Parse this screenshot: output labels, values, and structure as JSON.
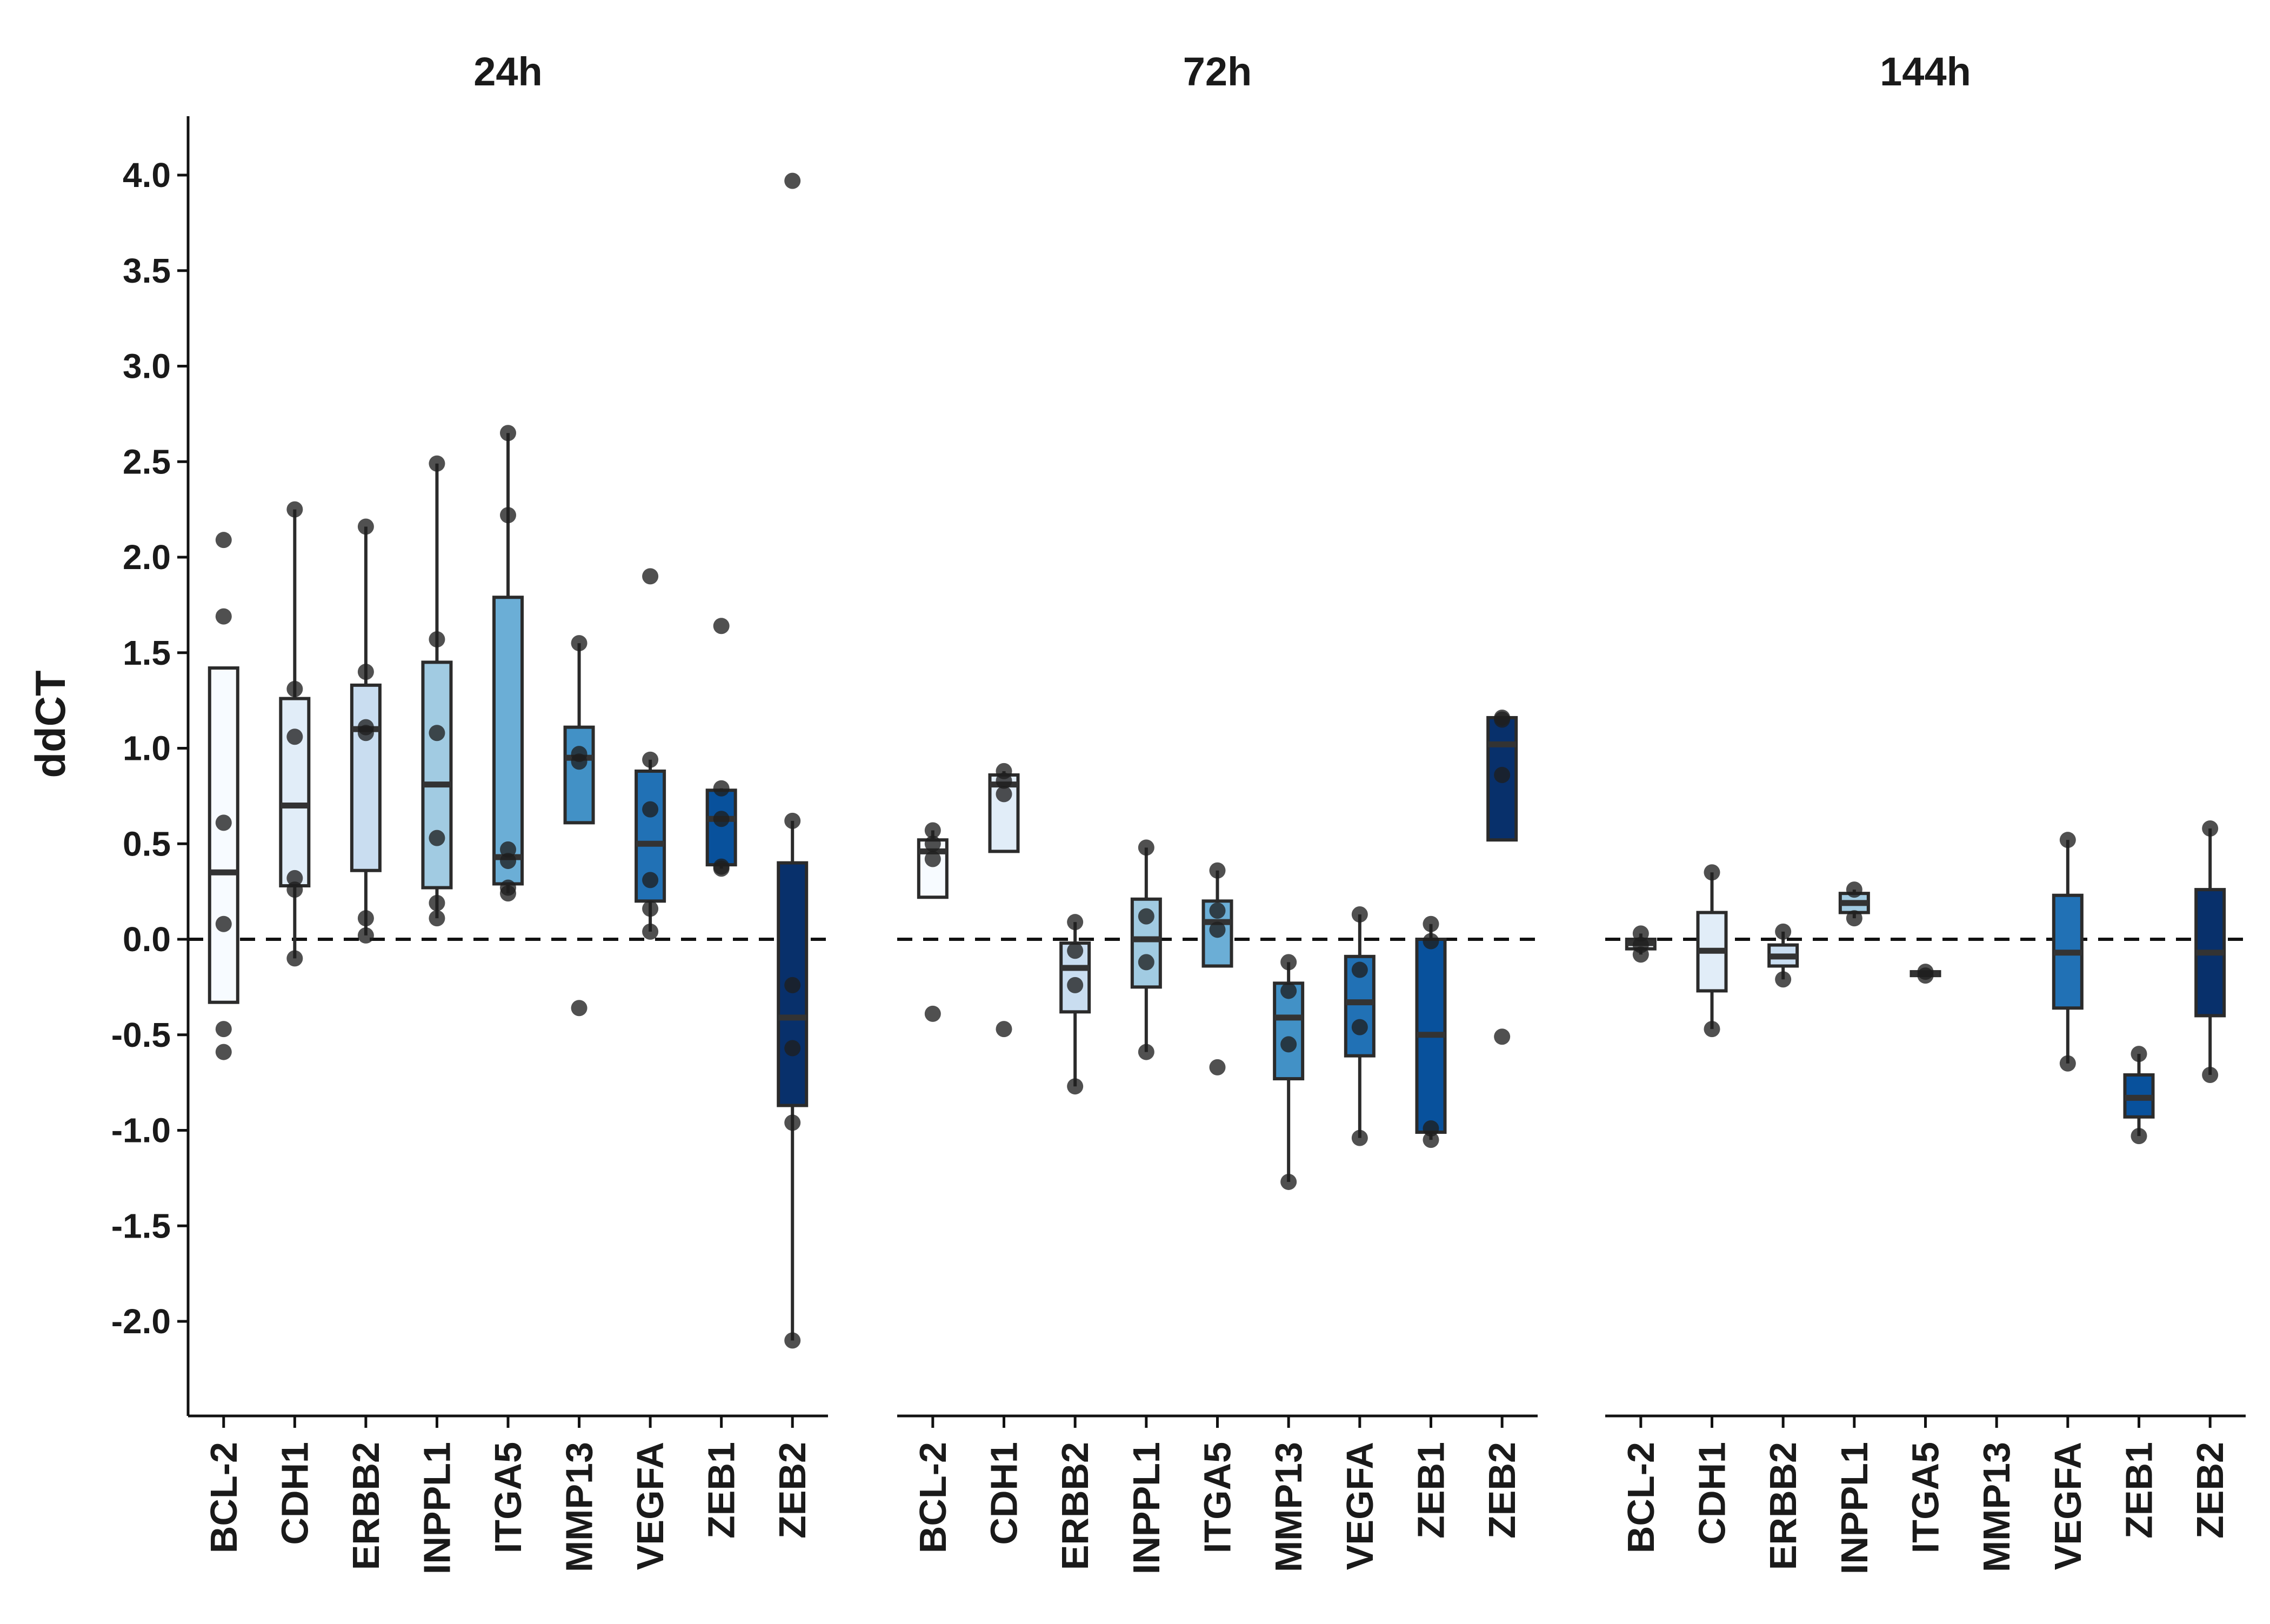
{
  "chart_data": {
    "type": "box",
    "ylabel": "ddCT",
    "ylim": [
      -2.5,
      4.3
    ],
    "yticks": [
      -2.0,
      -1.5,
      -1.0,
      -0.5,
      0.0,
      0.5,
      1.0,
      1.5,
      2.0,
      2.5,
      3.0,
      3.5,
      4.0
    ],
    "ytick_labels": [
      "-2.0",
      "-1.5",
      "-1.0",
      "-0.5",
      "0.0",
      "0.5",
      "1.0",
      "1.5",
      "2.0",
      "2.5",
      "3.0",
      "3.5",
      "4.0"
    ],
    "reference_line": {
      "y": 0.0,
      "style": "dashed"
    },
    "grid": false,
    "legend": "none",
    "categories": [
      "BCL-2",
      "CDH1",
      "ERBB2",
      "INPPL1",
      "ITGA5",
      "MMP13",
      "VEGFA",
      "ZEB1",
      "ZEB2"
    ],
    "category_colors": [
      "#f7fbff",
      "#e1edf8",
      "#c9ddf0",
      "#a1cbe2",
      "#6baed6",
      "#4291c6",
      "#2171b5",
      "#08519c",
      "#08306b"
    ],
    "panels": [
      {
        "title": "24h",
        "boxes": [
          {
            "category": "BCL-2",
            "q1": -0.33,
            "median": 0.35,
            "q3": 1.42,
            "lower": -0.33,
            "upper": 1.42,
            "points": [
              2.09,
              1.69,
              0.61,
              0.08,
              -0.47,
              -0.59
            ]
          },
          {
            "category": "CDH1",
            "q1": 0.28,
            "median": 0.7,
            "q3": 1.26,
            "lower": -0.1,
            "upper": 2.25,
            "points": [
              2.25,
              1.31,
              1.06,
              0.32,
              0.26,
              -0.1
            ]
          },
          {
            "category": "ERBB2",
            "q1": 0.36,
            "median": 1.1,
            "q3": 1.33,
            "lower": 0.02,
            "upper": 2.16,
            "points": [
              2.16,
              1.4,
              1.11,
              1.08,
              0.11,
              0.02
            ]
          },
          {
            "category": "INPPL1",
            "q1": 0.27,
            "median": 0.81,
            "q3": 1.45,
            "lower": 0.11,
            "upper": 2.49,
            "points": [
              2.49,
              1.57,
              1.08,
              0.53,
              0.19,
              0.11
            ]
          },
          {
            "category": "ITGA5",
            "q1": 0.29,
            "median": 0.43,
            "q3": 1.79,
            "lower": 0.24,
            "upper": 2.65,
            "points": [
              2.65,
              2.22,
              0.47,
              0.41,
              0.27,
              0.24
            ]
          },
          {
            "category": "MMP13",
            "q1": 0.61,
            "median": 0.95,
            "q3": 1.11,
            "lower": 0.61,
            "upper": 1.55,
            "points": [
              1.55,
              0.97,
              0.93,
              -0.36
            ]
          },
          {
            "category": "VEGFA",
            "q1": 0.2,
            "median": 0.5,
            "q3": 0.88,
            "lower": 0.04,
            "upper": 0.94,
            "points": [
              1.9,
              0.94,
              0.68,
              0.31,
              0.16,
              0.04
            ]
          },
          {
            "category": "ZEB1",
            "q1": 0.39,
            "median": 0.63,
            "q3": 0.78,
            "lower": 0.37,
            "upper": 0.79,
            "points": [
              1.64,
              0.79,
              0.63,
              0.38,
              0.37
            ]
          },
          {
            "category": "ZEB2",
            "q1": -0.87,
            "median": -0.41,
            "q3": 0.4,
            "lower": -2.1,
            "upper": 0.62,
            "points": [
              3.97,
              0.62,
              -0.24,
              -0.57,
              -0.96,
              -2.1
            ]
          }
        ]
      },
      {
        "title": "72h",
        "boxes": [
          {
            "category": "BCL-2",
            "q1": 0.22,
            "median": 0.46,
            "q3": 0.52,
            "lower": 0.22,
            "upper": 0.57,
            "points": [
              0.57,
              0.5,
              0.42,
              -0.39
            ]
          },
          {
            "category": "CDH1",
            "q1": 0.46,
            "median": 0.81,
            "q3": 0.86,
            "lower": 0.46,
            "upper": 0.88,
            "points": [
              0.88,
              0.83,
              0.76,
              -0.47
            ]
          },
          {
            "category": "ERBB2",
            "q1": -0.38,
            "median": -0.15,
            "q3": -0.02,
            "lower": -0.77,
            "upper": 0.09,
            "points": [
              0.09,
              -0.06,
              -0.24,
              -0.77
            ]
          },
          {
            "category": "INPPL1",
            "q1": -0.25,
            "median": 0.0,
            "q3": 0.21,
            "lower": -0.59,
            "upper": 0.48,
            "points": [
              0.48,
              0.12,
              -0.12,
              -0.59
            ]
          },
          {
            "category": "ITGA5",
            "q1": -0.14,
            "median": 0.09,
            "q3": 0.2,
            "lower": -0.14,
            "upper": 0.36,
            "points": [
              0.36,
              0.15,
              0.05,
              -0.67
            ]
          },
          {
            "category": "MMP13",
            "q1": -0.73,
            "median": -0.41,
            "q3": -0.23,
            "lower": -1.27,
            "upper": -0.12,
            "points": [
              -0.12,
              -0.27,
              -0.55,
              -1.27
            ]
          },
          {
            "category": "VEGFA",
            "q1": -0.61,
            "median": -0.33,
            "q3": -0.09,
            "lower": -1.04,
            "upper": 0.13,
            "points": [
              0.13,
              -0.16,
              -0.46,
              -1.04
            ]
          },
          {
            "category": "ZEB1",
            "q1": -1.01,
            "median": -0.5,
            "q3": 0.0,
            "lower": -1.05,
            "upper": 0.08,
            "points": [
              0.08,
              -0.01,
              -0.99,
              -1.05
            ]
          },
          {
            "category": "ZEB2",
            "q1": 0.52,
            "median": 1.02,
            "q3": 1.16,
            "lower": 0.52,
            "upper": 1.16,
            "points": [
              1.16,
              1.15,
              0.86,
              -0.51
            ]
          }
        ]
      },
      {
        "title": "144h",
        "boxes": [
          {
            "category": "BCL-2",
            "q1": -0.05,
            "median": -0.02,
            "q3": 0.0,
            "lower": -0.08,
            "upper": 0.03,
            "points": [
              0.03,
              -0.03,
              -0.08
            ]
          },
          {
            "category": "CDH1",
            "q1": -0.27,
            "median": -0.06,
            "q3": 0.14,
            "lower": -0.47,
            "upper": 0.35,
            "points": [
              0.35,
              -0.47
            ]
          },
          {
            "category": "ERBB2",
            "q1": -0.14,
            "median": -0.09,
            "q3": -0.03,
            "lower": -0.21,
            "upper": 0.04,
            "points": [
              0.04,
              -0.21
            ]
          },
          {
            "category": "INPPL1",
            "q1": 0.14,
            "median": 0.19,
            "q3": 0.24,
            "lower": 0.11,
            "upper": 0.26,
            "points": [
              0.26,
              0.11
            ]
          },
          {
            "category": "ITGA5",
            "q1": -0.19,
            "median": -0.18,
            "q3": -0.17,
            "lower": -0.19,
            "upper": -0.17,
            "points": [
              -0.17,
              -0.19
            ]
          },
          {
            "category": "VEGFA",
            "q1": -0.36,
            "median": -0.07,
            "q3": 0.23,
            "lower": -0.65,
            "upper": 0.52,
            "points": [
              0.52,
              -0.65
            ]
          },
          {
            "category": "ZEB1",
            "q1": -0.93,
            "median": -0.83,
            "q3": -0.71,
            "lower": -1.03,
            "upper": -0.6,
            "points": [
              -0.6,
              -1.03
            ]
          },
          {
            "category": "ZEB2",
            "q1": -0.4,
            "median": -0.07,
            "q3": 0.26,
            "lower": -0.71,
            "upper": 0.58,
            "points": [
              0.58,
              -0.71
            ]
          }
        ]
      }
    ]
  }
}
